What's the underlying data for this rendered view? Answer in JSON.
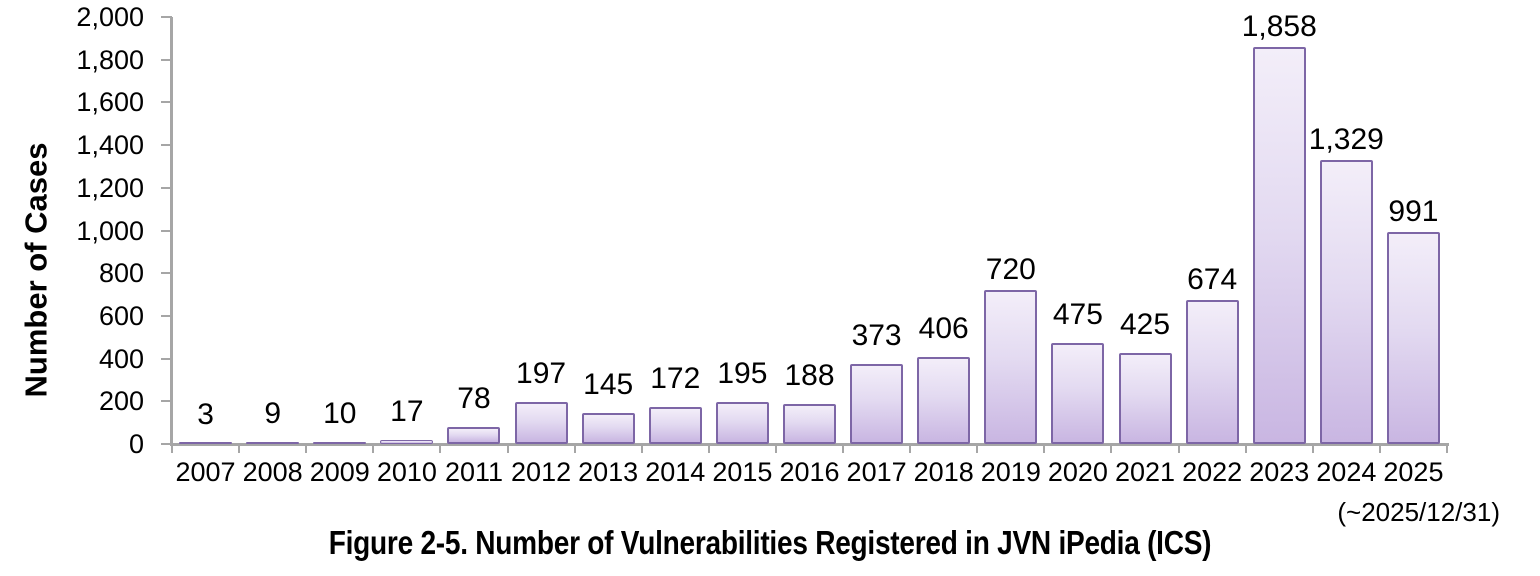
{
  "figure": {
    "caption": "Figure 2-5. Number of Vulnerabilities Registered in JVN iPedia (ICS)",
    "date_note": "(~2025/12/31)"
  },
  "chart_data": {
    "type": "bar",
    "title": "",
    "xlabel": "",
    "ylabel": "Number of Cases",
    "categories": [
      "2007",
      "2008",
      "2009",
      "2010",
      "2011",
      "2012",
      "2013",
      "2014",
      "2015",
      "2016",
      "2017",
      "2018",
      "2019",
      "2020",
      "2021",
      "2022",
      "2023",
      "2024",
      "2025"
    ],
    "values": [
      3,
      9,
      10,
      17,
      78,
      197,
      145,
      172,
      195,
      188,
      373,
      406,
      720,
      475,
      425,
      674,
      1858,
      1329,
      991
    ],
    "value_labels": [
      "3",
      "9",
      "10",
      "17",
      "78",
      "197",
      "145",
      "172",
      "195",
      "188",
      "373",
      "406",
      "720",
      "475",
      "425",
      "674",
      "1,858",
      "1,329",
      "991"
    ],
    "ylim": [
      0,
      2000
    ],
    "ytick_interval": 200,
    "ytick_labels": [
      "0",
      "200",
      "400",
      "600",
      "800",
      "1,000",
      "1,200",
      "1,400",
      "1,600",
      "1,800",
      "2,000"
    ],
    "grid": false,
    "legend": "none",
    "colors": {
      "bar_fill_top": "#f3eef9",
      "bar_fill_bottom": "#c9b6e2",
      "bar_border": "#7d66a6",
      "axis": "#a6a6a6",
      "text": "#000000"
    }
  }
}
